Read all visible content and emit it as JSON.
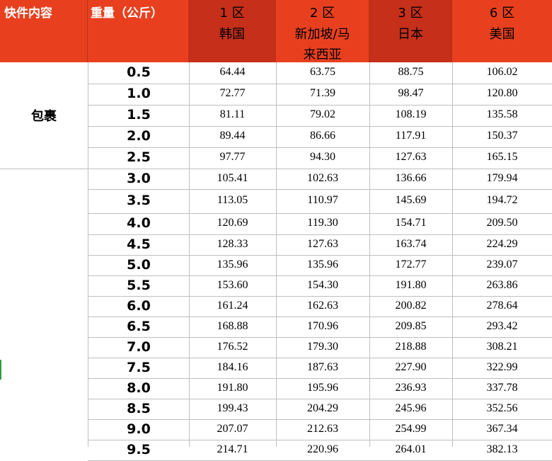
{
  "header": {
    "col_content": "快件内容",
    "col_weight": "重量（公斤）",
    "zones": [
      {
        "zone": "1 区",
        "dest": "韩国"
      },
      {
        "zone": "2 区",
        "dest": "新加坡/马来西亚"
      },
      {
        "zone": "3 区",
        "dest": "日本"
      },
      {
        "zone": "6 区",
        "dest": "美国"
      }
    ],
    "dest_line1_zone2": "新加坡/马",
    "dest_line2_zone2": "来西亚"
  },
  "category": "包裹",
  "rows": [
    {
      "w": "0.5",
      "v": [
        "64.44",
        "63.75",
        "88.75",
        "106.02"
      ]
    },
    {
      "w": "1.0",
      "v": [
        "72.77",
        "71.39",
        "98.47",
        "120.80"
      ]
    },
    {
      "w": "1.5",
      "v": [
        "81.11",
        "79.02",
        "108.19",
        "135.58"
      ]
    },
    {
      "w": "2.0",
      "v": [
        "89.44",
        "86.66",
        "117.91",
        "150.37"
      ]
    },
    {
      "w": "2.5",
      "v": [
        "97.77",
        "94.30",
        "127.63",
        "165.15"
      ]
    },
    {
      "w": "3.0",
      "v": [
        "105.41",
        "102.63",
        "136.66",
        "179.94"
      ]
    },
    {
      "w": "3.5",
      "v": [
        "113.05",
        "110.97",
        "145.69",
        "194.72"
      ]
    },
    {
      "w": "4.0",
      "v": [
        "120.69",
        "119.30",
        "154.71",
        "209.50"
      ]
    },
    {
      "w": "4.5",
      "v": [
        "128.33",
        "127.63",
        "163.74",
        "224.29"
      ]
    },
    {
      "w": "5.0",
      "v": [
        "135.96",
        "135.96",
        "172.77",
        "239.07"
      ]
    },
    {
      "w": "5.5",
      "v": [
        "153.60",
        "154.30",
        "191.80",
        "263.86"
      ]
    },
    {
      "w": "6.0",
      "v": [
        "161.24",
        "162.63",
        "200.82",
        "278.64"
      ]
    },
    {
      "w": "6.5",
      "v": [
        "168.88",
        "170.96",
        "209.85",
        "293.42"
      ]
    },
    {
      "w": "7.0",
      "v": [
        "176.52",
        "179.30",
        "218.88",
        "308.21"
      ]
    },
    {
      "w": "7.5",
      "v": [
        "184.16",
        "187.63",
        "227.90",
        "322.99"
      ]
    },
    {
      "w": "8.0",
      "v": [
        "191.80",
        "195.96",
        "236.93",
        "337.78"
      ]
    },
    {
      "w": "8.5",
      "v": [
        "199.43",
        "204.29",
        "245.96",
        "352.56"
      ]
    },
    {
      "w": "9.0",
      "v": [
        "207.07",
        "212.63",
        "254.99",
        "367.34"
      ]
    },
    {
      "w": "9.5",
      "v": [
        "214.71",
        "220.96",
        "264.01",
        "382.13"
      ]
    }
  ]
}
